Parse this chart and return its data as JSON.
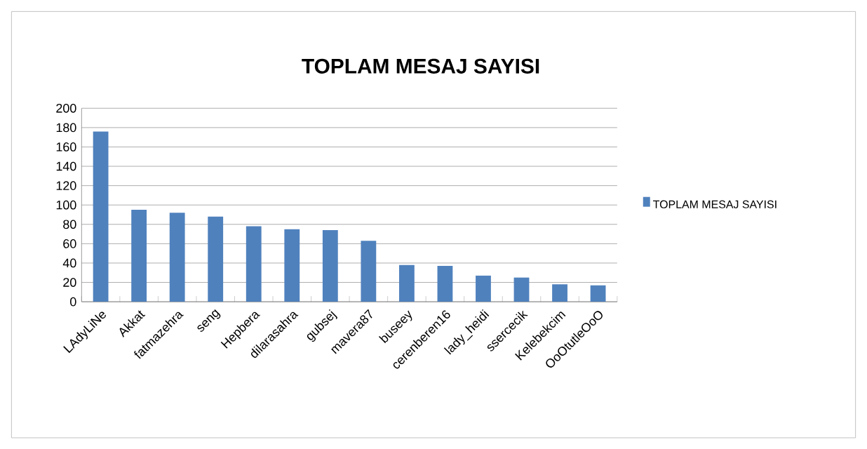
{
  "chart_data": {
    "type": "bar",
    "title": "TOPLAM MESAJ SAYISI",
    "categories": [
      "LAdyLiNe",
      "Akkat",
      "fatmazehra",
      "seng",
      "Hepbera",
      "dilarasahra",
      "gubsej",
      "mavera87",
      "buseey",
      "cerenberen16",
      "lady_heidi",
      "ssercecik",
      "Kelebekcim",
      "OoOtutleOoO"
    ],
    "series": [
      {
        "name": "TOPLAM MESAJ SAYISI",
        "color": "#4f81bd",
        "values": [
          176,
          95,
          92,
          88,
          78,
          75,
          74,
          63,
          38,
          37,
          27,
          25,
          18,
          17
        ]
      }
    ],
    "ylim": [
      0,
      200
    ],
    "yticks": [
      0,
      20,
      40,
      60,
      80,
      100,
      120,
      140,
      160,
      180,
      200
    ],
    "grid": "y",
    "legend": "right"
  }
}
